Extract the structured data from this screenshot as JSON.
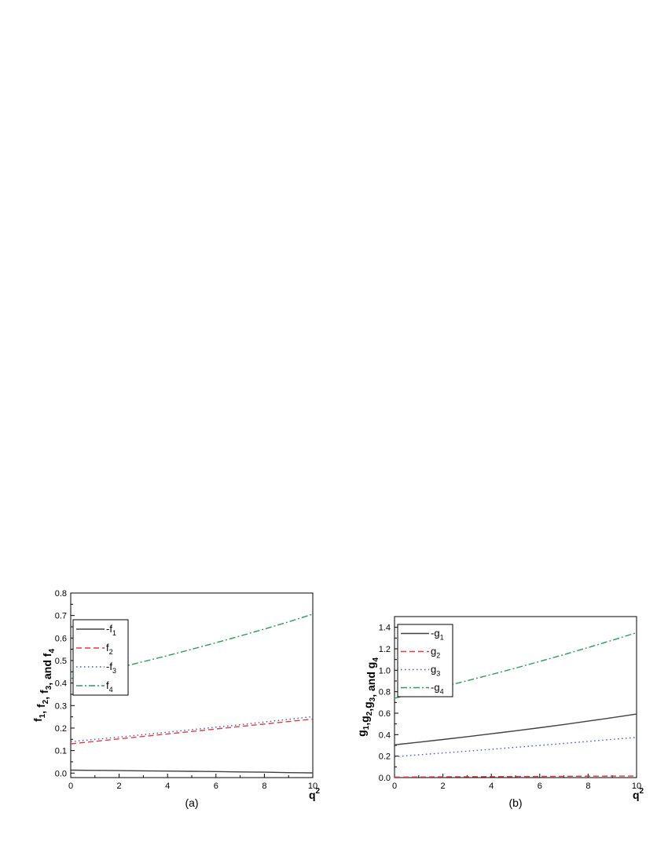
{
  "chart_data": [
    {
      "type": "line",
      "panel_label": "(a)",
      "xlabel": {
        "base": "q",
        "sup": "2"
      },
      "ylabel": "f1, f2, f3, and f4",
      "ylabel_parts": [
        {
          "t": "f",
          "sub": "1"
        },
        {
          "t": ", f",
          "sub": "2"
        },
        {
          "t": ", f",
          "sub": "3"
        },
        {
          "t": ", and f",
          "sub": "4"
        }
      ],
      "xlim": [
        0,
        10
      ],
      "ylim": [
        -0.02,
        0.8
      ],
      "xticks": [
        0,
        2,
        4,
        6,
        8,
        10
      ],
      "yticks": [
        0.0,
        0.1,
        0.2,
        0.3,
        0.4,
        0.5,
        0.6,
        0.7,
        0.8
      ],
      "ytick_labels": [
        "0.0",
        "0.1",
        "0.2",
        "0.3",
        "0.4",
        "0.5",
        "0.6",
        "0.7",
        "0.8"
      ],
      "legend_position": "top-left",
      "x": [
        0,
        1,
        2,
        3,
        4,
        5,
        6,
        7,
        8,
        9,
        10
      ],
      "series": [
        {
          "name": "-f",
          "name_sub": "1",
          "color": "#404040",
          "style": "solid",
          "values": [
            0.013,
            0.012,
            0.011,
            0.01,
            0.009,
            0.008,
            0.007,
            0.005,
            0.004,
            0.002,
            0.001
          ]
        },
        {
          "name": "f",
          "name_sub": "2",
          "color": "#e8393f",
          "style": "dashed",
          "values": [
            0.13,
            0.141,
            0.152,
            0.163,
            0.174,
            0.185,
            0.196,
            0.207,
            0.218,
            0.229,
            0.24
          ]
        },
        {
          "name": "-f",
          "name_sub": "3",
          "color": "#2f5fd0",
          "style": "dotted",
          "values": [
            0.14,
            0.15,
            0.16,
            0.171,
            0.182,
            0.193,
            0.204,
            0.215,
            0.227,
            0.239,
            0.251
          ]
        },
        {
          "name": "f",
          "name_sub": "4",
          "color": "#2a9d50",
          "style": "dashdot",
          "values": [
            0.42,
            0.444,
            0.469,
            0.495,
            0.522,
            0.55,
            0.579,
            0.609,
            0.64,
            0.672,
            0.706
          ]
        }
      ]
    },
    {
      "type": "line",
      "panel_label": "(b)",
      "xlabel": {
        "base": "q",
        "sup": "2"
      },
      "ylabel": "g1,g2,g3, and g4",
      "ylabel_parts": [
        {
          "t": "g",
          "sub": "1"
        },
        {
          "t": ",g",
          "sub": "2"
        },
        {
          "t": ",g",
          "sub": "3"
        },
        {
          "t": ", and g",
          "sub": "4"
        }
      ],
      "xlim": [
        0,
        10
      ],
      "ylim": [
        0,
        1.5
      ],
      "xticks": [
        0,
        2,
        4,
        6,
        8,
        10
      ],
      "yticks": [
        0.0,
        0.2,
        0.4,
        0.6,
        0.8,
        1.0,
        1.2,
        1.4
      ],
      "ytick_labels": [
        "0.0",
        "0.2",
        "0.4",
        "0.6",
        "0.8",
        "1.0",
        "1.2",
        "1.4"
      ],
      "legend_position": "top-left",
      "x": [
        0,
        1,
        2,
        3,
        4,
        5,
        6,
        7,
        8,
        9,
        10
      ],
      "series": [
        {
          "name": "-g",
          "name_sub": "1",
          "color": "#404040",
          "style": "solid",
          "values": [
            0.305,
            0.33,
            0.355,
            0.381,
            0.408,
            0.436,
            0.465,
            0.495,
            0.526,
            0.558,
            0.592
          ]
        },
        {
          "name": "g",
          "name_sub": "2",
          "color": "#e8393f",
          "style": "dashed",
          "values": [
            0.005,
            0.006,
            0.007,
            0.008,
            0.009,
            0.01,
            0.011,
            0.012,
            0.013,
            0.014,
            0.015
          ]
        },
        {
          "name": "g",
          "name_sub": "3",
          "color": "#2f5fd0",
          "style": "dotted",
          "values": [
            0.195,
            0.212,
            0.229,
            0.246,
            0.264,
            0.282,
            0.3,
            0.318,
            0.337,
            0.356,
            0.375
          ]
        },
        {
          "name": "-g",
          "name_sub": "4",
          "color": "#2a9d50",
          "style": "dashdot",
          "values": [
            0.74,
            0.792,
            0.846,
            0.902,
            0.96,
            1.02,
            1.082,
            1.146,
            1.212,
            1.28,
            1.35
          ]
        }
      ]
    }
  ]
}
